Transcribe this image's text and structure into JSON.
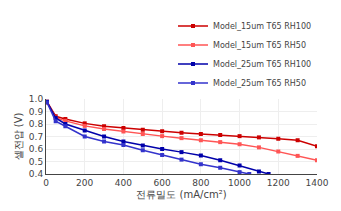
{
  "chart_data": {
    "type": "line",
    "xlabel": "전류밀도 (mA/cm²)",
    "ylabel": "셀전압 (V)",
    "xlim": [
      0,
      1400
    ],
    "ylim": [
      0.4,
      1.0
    ],
    "xticks": [
      0,
      200,
      400,
      600,
      800,
      1000,
      1200,
      1400
    ],
    "yticks": [
      0.4,
      0.5,
      0.6,
      0.7,
      0.8,
      0.9,
      {
        "value": 1.0,
        "label": "1.0"
      }
    ],
    "grid": true,
    "legend": "upper right",
    "series": [
      {
        "name": "Model_15um T65 RH100",
        "color": "#cc0000",
        "marker": "square",
        "line_style": "solid",
        "x": [
          5,
          50,
          100,
          200,
          300,
          400,
          500,
          600,
          700,
          800,
          900,
          1000,
          1100,
          1200,
          1300,
          1400
        ],
        "values": [
          0.978,
          0.862,
          0.84,
          0.805,
          0.782,
          0.768,
          0.754,
          0.742,
          0.73,
          0.72,
          0.712,
          0.703,
          0.693,
          0.682,
          0.67,
          0.622
        ]
      },
      {
        "name": "Model_15um T65 RH50",
        "color": "#ff5555",
        "marker": "square",
        "line_style": "solid",
        "x": [
          5,
          50,
          100,
          200,
          300,
          400,
          500,
          600,
          700,
          800,
          900,
          1000,
          1100,
          1200,
          1300,
          1400
        ],
        "values": [
          0.972,
          0.85,
          0.825,
          0.785,
          0.76,
          0.74,
          0.72,
          0.703,
          0.687,
          0.67,
          0.655,
          0.638,
          0.613,
          0.58,
          0.545,
          0.51
        ]
      },
      {
        "name": "Model_25um T65 RH100",
        "color": "#0000aa",
        "marker": "square",
        "line_style": "solid",
        "x": [
          5,
          50,
          100,
          200,
          300,
          400,
          500,
          600,
          700,
          800,
          900,
          1000,
          1100,
          1150
        ],
        "values": [
          0.978,
          0.848,
          0.8,
          0.748,
          0.7,
          0.66,
          0.628,
          0.6,
          0.575,
          0.548,
          0.51,
          0.468,
          0.42,
          0.4
        ]
      },
      {
        "name": "Model_25um T65 RH50",
        "color": "#3333cc",
        "marker": "square",
        "line_style": "solid",
        "x": [
          5,
          50,
          100,
          200,
          300,
          400,
          500,
          600,
          700,
          800,
          900,
          1000,
          1050
        ],
        "values": [
          0.972,
          0.822,
          0.782,
          0.7,
          0.66,
          0.632,
          0.59,
          0.552,
          0.515,
          0.478,
          0.45,
          0.415,
          0.4
        ]
      }
    ]
  }
}
